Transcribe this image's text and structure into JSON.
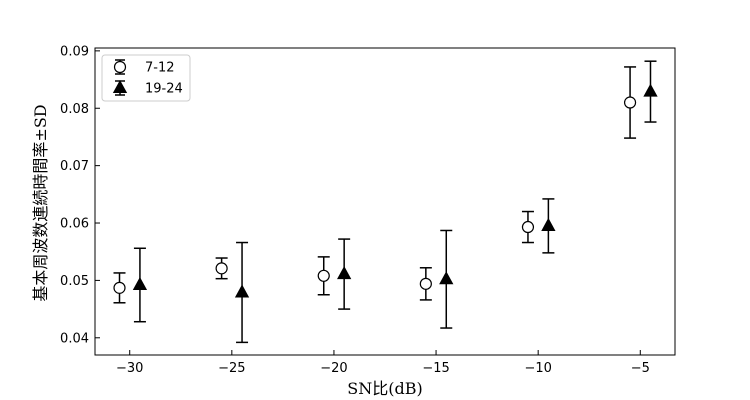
{
  "chart_data": {
    "type": "scatter",
    "title": "",
    "xlabel": "SN比(dB)",
    "ylabel": "基本周波数連続時間率±SD",
    "xlim": [
      -31.7,
      -3.3
    ],
    "ylim": [
      0.037,
      0.0905
    ],
    "grid": false,
    "legend_position": "upper-left",
    "x_ticks": [
      -30,
      -25,
      -20,
      -15,
      -10,
      -5
    ],
    "x_tick_labels": [
      "−30",
      "−25",
      "−20",
      "−15",
      "−10",
      "−5"
    ],
    "y_ticks": [
      0.04,
      0.05,
      0.06,
      0.07,
      0.08,
      0.09
    ],
    "y_tick_labels": [
      "0.04",
      "0.05",
      "0.06",
      "0.07",
      "0.08",
      "0.09"
    ],
    "series": [
      {
        "name": "7-12",
        "marker": "open-circle",
        "points": [
          {
            "x": -30.5,
            "y": 0.0487,
            "sd": 0.0026
          },
          {
            "x": -25.5,
            "y": 0.0521,
            "sd": 0.0018
          },
          {
            "x": -20.5,
            "y": 0.0508,
            "sd": 0.0033
          },
          {
            "x": -15.5,
            "y": 0.0494,
            "sd": 0.0028
          },
          {
            "x": -10.5,
            "y": 0.0593,
            "sd": 0.0027
          },
          {
            "x": -5.5,
            "y": 0.081,
            "sd": 0.0062
          }
        ]
      },
      {
        "name": "19-24",
        "marker": "filled-triangle",
        "points": [
          {
            "x": -29.5,
            "y": 0.0492,
            "sd": 0.0064
          },
          {
            "x": -24.5,
            "y": 0.0479,
            "sd": 0.0087
          },
          {
            "x": -19.5,
            "y": 0.0511,
            "sd": 0.0061
          },
          {
            "x": -14.5,
            "y": 0.0502,
            "sd": 0.0085
          },
          {
            "x": -9.5,
            "y": 0.0595,
            "sd": 0.0047
          },
          {
            "x": -4.5,
            "y": 0.0829,
            "sd": 0.0053
          }
        ]
      }
    ]
  }
}
